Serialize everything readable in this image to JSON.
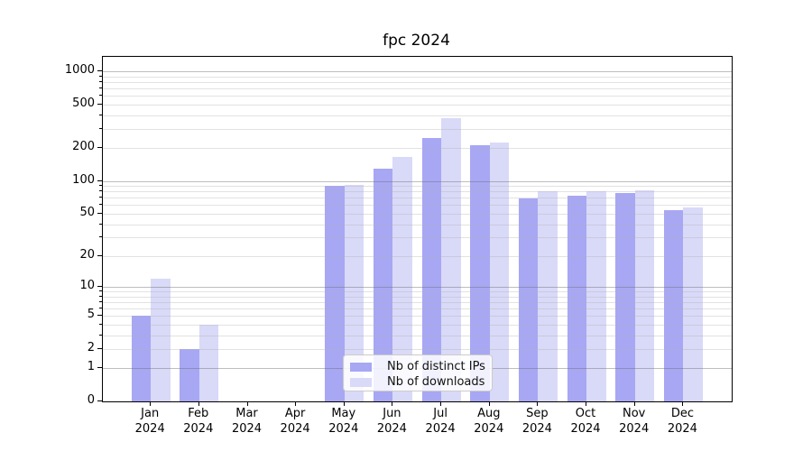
{
  "title": "fpc 2024",
  "colors": {
    "distinct_ips": "#a7a7f4",
    "downloads": "#d9d9f8",
    "grid_major": "#b0b0b0",
    "grid_minor": "#e6e6e6",
    "spine": "#000000",
    "legend_border": "#cccccc"
  },
  "legend": {
    "items": [
      {
        "label": "Nb of distinct IPs",
        "series": "distinct_ips"
      },
      {
        "label": "Nb of downloads",
        "series": "downloads"
      }
    ]
  },
  "chart_data": {
    "type": "bar",
    "title": "fpc 2024",
    "categories": [
      "Jan 2024",
      "Feb 2024",
      "Mar 2024",
      "Apr 2024",
      "May 2024",
      "Jun 2024",
      "Jul 2024",
      "Aug 2024",
      "Sep 2024",
      "Oct 2024",
      "Nov 2024",
      "Dec 2024"
    ],
    "x_tick_line1": [
      "Jan",
      "Feb",
      "Mar",
      "Apr",
      "May",
      "Jun",
      "Jul",
      "Aug",
      "Sep",
      "Oct",
      "Nov",
      "Dec"
    ],
    "x_tick_line2": [
      "2024",
      "2024",
      "2024",
      "2024",
      "2024",
      "2024",
      "2024",
      "2024",
      "2024",
      "2024",
      "2024",
      "2024"
    ],
    "series": [
      {
        "name": "Nb of distinct IPs",
        "key": "distinct_ips",
        "values": [
          5,
          2,
          0,
          0,
          90,
          130,
          250,
          215,
          69,
          73,
          77,
          54
        ]
      },
      {
        "name": "Nb of downloads",
        "key": "downloads",
        "values": [
          12,
          4,
          0,
          0,
          92,
          168,
          375,
          225,
          80,
          80,
          83,
          57
        ]
      }
    ],
    "xlabel": "",
    "ylabel": "",
    "yscale": "log1p",
    "y_tick_values": [
      1000,
      500,
      200,
      100,
      50,
      20,
      10,
      5,
      2,
      1,
      0
    ],
    "y_tick_labels": [
      "1000",
      "500",
      "200",
      "100",
      "50",
      "20",
      "10",
      "5",
      "2",
      "1",
      "0"
    ],
    "y_minor_grid_values": [
      2,
      3,
      4,
      5,
      6,
      7,
      8,
      9,
      20,
      30,
      40,
      50,
      60,
      70,
      80,
      90,
      200,
      300,
      400,
      500,
      600,
      700,
      800,
      900
    ],
    "ylim": [
      0,
      1363
    ],
    "grid": true,
    "legend_position": "lower-center-inside"
  }
}
